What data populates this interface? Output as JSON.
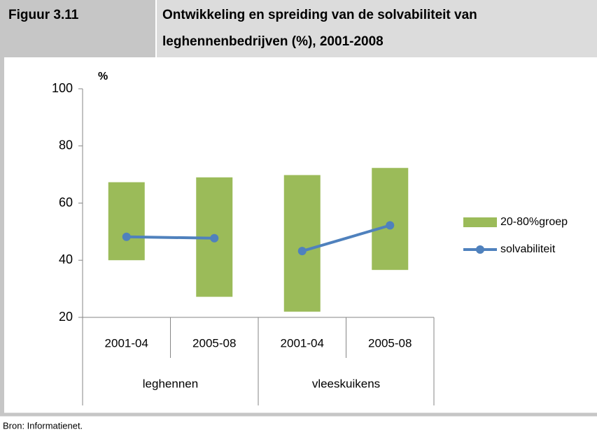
{
  "header": {
    "figure": "Figuur 3.11",
    "title_lines": [
      "Ontwikkeling en spreiding van de solvabiliteit van",
      "leghennenbedrijven (%), 2001-2008"
    ]
  },
  "chart_data": {
    "type": "range_bar_line",
    "y_label": "%",
    "categories": [
      "2001-04",
      "2005-08",
      "2001-04",
      "2005-08"
    ],
    "groups": [
      "leghennen",
      "leghennen",
      "vleeskuikens",
      "vleeskuikens"
    ],
    "ylim": [
      20,
      100
    ],
    "yticks": [
      20,
      40,
      60,
      80,
      100
    ],
    "bars": {
      "name": "20-80%groep",
      "color": "#9bbb59",
      "low": [
        40,
        27.2,
        22,
        36.6
      ],
      "high": [
        67.3,
        69,
        69.8,
        72.3
      ]
    },
    "line": {
      "name": "solvabiliteit",
      "color": "#4f81bd",
      "values": [
        48.2,
        47.7,
        43.2,
        52.2
      ]
    }
  },
  "source": "Bron: Informatienet."
}
